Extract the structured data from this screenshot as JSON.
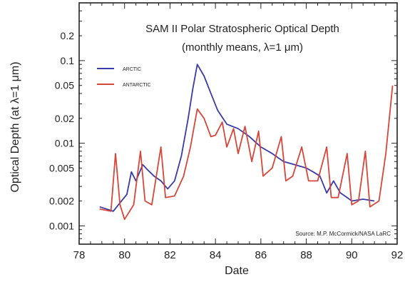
{
  "chart_data": {
    "type": "line",
    "title": "SAM II Polar Stratospheric Optical Depth",
    "subtitle": "(monthly means, λ=1 μm)",
    "xlabel": "Date",
    "ylabel": "Optical Depth (at λ=1 μm)",
    "source": "Source: M.P. McCormick/NASA LaRC",
    "yscale": "log",
    "xlim": [
      78,
      92
    ],
    "ylim": [
      0.0006,
      0.5
    ],
    "x_ticks": [
      78,
      80,
      82,
      84,
      86,
      88,
      90,
      92
    ],
    "y_ticks": [
      0.001,
      0.002,
      0.005,
      0.01,
      0.02,
      0.05,
      0.1,
      0.2
    ],
    "y_tick_labels": [
      "0.001",
      "0.002",
      "0.005",
      "0.01",
      "0.02",
      "0.05",
      "0.1",
      "0.2"
    ],
    "legend_position": "top-left",
    "grid": false,
    "series": [
      {
        "name": "ARCTIC",
        "color": "#3a3aa8",
        "points": [
          [
            78.9,
            0.0017
          ],
          [
            79.2,
            0.0016
          ],
          [
            79.5,
            0.0015
          ],
          [
            79.8,
            0.0019
          ],
          [
            80.1,
            0.0024
          ],
          [
            80.3,
            0.0045
          ],
          [
            80.5,
            0.0035
          ],
          [
            80.8,
            0.0055
          ],
          [
            81.0,
            0.0048
          ],
          [
            81.3,
            0.004
          ],
          [
            81.6,
            0.0035
          ],
          [
            81.9,
            0.0028
          ],
          [
            82.2,
            0.0035
          ],
          [
            82.5,
            0.007
          ],
          [
            82.8,
            0.02
          ],
          [
            83.0,
            0.045
          ],
          [
            83.2,
            0.09
          ],
          [
            83.5,
            0.065
          ],
          [
            83.8,
            0.04
          ],
          [
            84.1,
            0.025
          ],
          [
            84.5,
            0.017
          ],
          [
            85.0,
            0.015
          ],
          [
            85.5,
            0.012
          ],
          [
            86.0,
            0.009
          ],
          [
            86.5,
            0.0075
          ],
          [
            87.0,
            0.006
          ],
          [
            87.5,
            0.0055
          ],
          [
            88.0,
            0.005
          ],
          [
            88.3,
            0.0045
          ],
          [
            88.6,
            0.004
          ],
          [
            88.9,
            0.0025
          ],
          [
            89.2,
            0.0035
          ],
          [
            89.5,
            0.0025
          ],
          [
            89.8,
            0.0022
          ],
          [
            90.0,
            0.002
          ],
          [
            90.5,
            0.0021
          ],
          [
            91.0,
            0.002
          ]
        ]
      },
      {
        "name": "ANTARCTIC",
        "color": "#d8463a",
        "points": [
          [
            78.9,
            0.0016
          ],
          [
            79.4,
            0.0015
          ],
          [
            79.6,
            0.0075
          ],
          [
            79.8,
            0.0018
          ],
          [
            80.0,
            0.0012
          ],
          [
            80.4,
            0.0018
          ],
          [
            80.7,
            0.008
          ],
          [
            80.9,
            0.002
          ],
          [
            81.2,
            0.0018
          ],
          [
            81.6,
            0.009
          ],
          [
            81.8,
            0.0022
          ],
          [
            82.2,
            0.0023
          ],
          [
            82.6,
            0.004
          ],
          [
            82.9,
            0.009
          ],
          [
            83.2,
            0.026
          ],
          [
            83.5,
            0.02
          ],
          [
            83.8,
            0.012
          ],
          [
            84.0,
            0.0125
          ],
          [
            84.3,
            0.018
          ],
          [
            84.5,
            0.009
          ],
          [
            84.8,
            0.015
          ],
          [
            85.0,
            0.0075
          ],
          [
            85.3,
            0.016
          ],
          [
            85.6,
            0.006
          ],
          [
            85.9,
            0.014
          ],
          [
            86.1,
            0.004
          ],
          [
            86.5,
            0.005
          ],
          [
            86.9,
            0.012
          ],
          [
            87.1,
            0.0035
          ],
          [
            87.4,
            0.004
          ],
          [
            87.8,
            0.009
          ],
          [
            88.1,
            0.0035
          ],
          [
            88.5,
            0.0035
          ],
          [
            88.9,
            0.009
          ],
          [
            89.1,
            0.0022
          ],
          [
            89.4,
            0.0022
          ],
          [
            89.8,
            0.0075
          ],
          [
            90.0,
            0.0018
          ],
          [
            90.3,
            0.002
          ],
          [
            90.6,
            0.008
          ],
          [
            90.8,
            0.0017
          ],
          [
            91.2,
            0.002
          ],
          [
            91.5,
            0.0075
          ],
          [
            91.8,
            0.05
          ]
        ]
      }
    ]
  }
}
